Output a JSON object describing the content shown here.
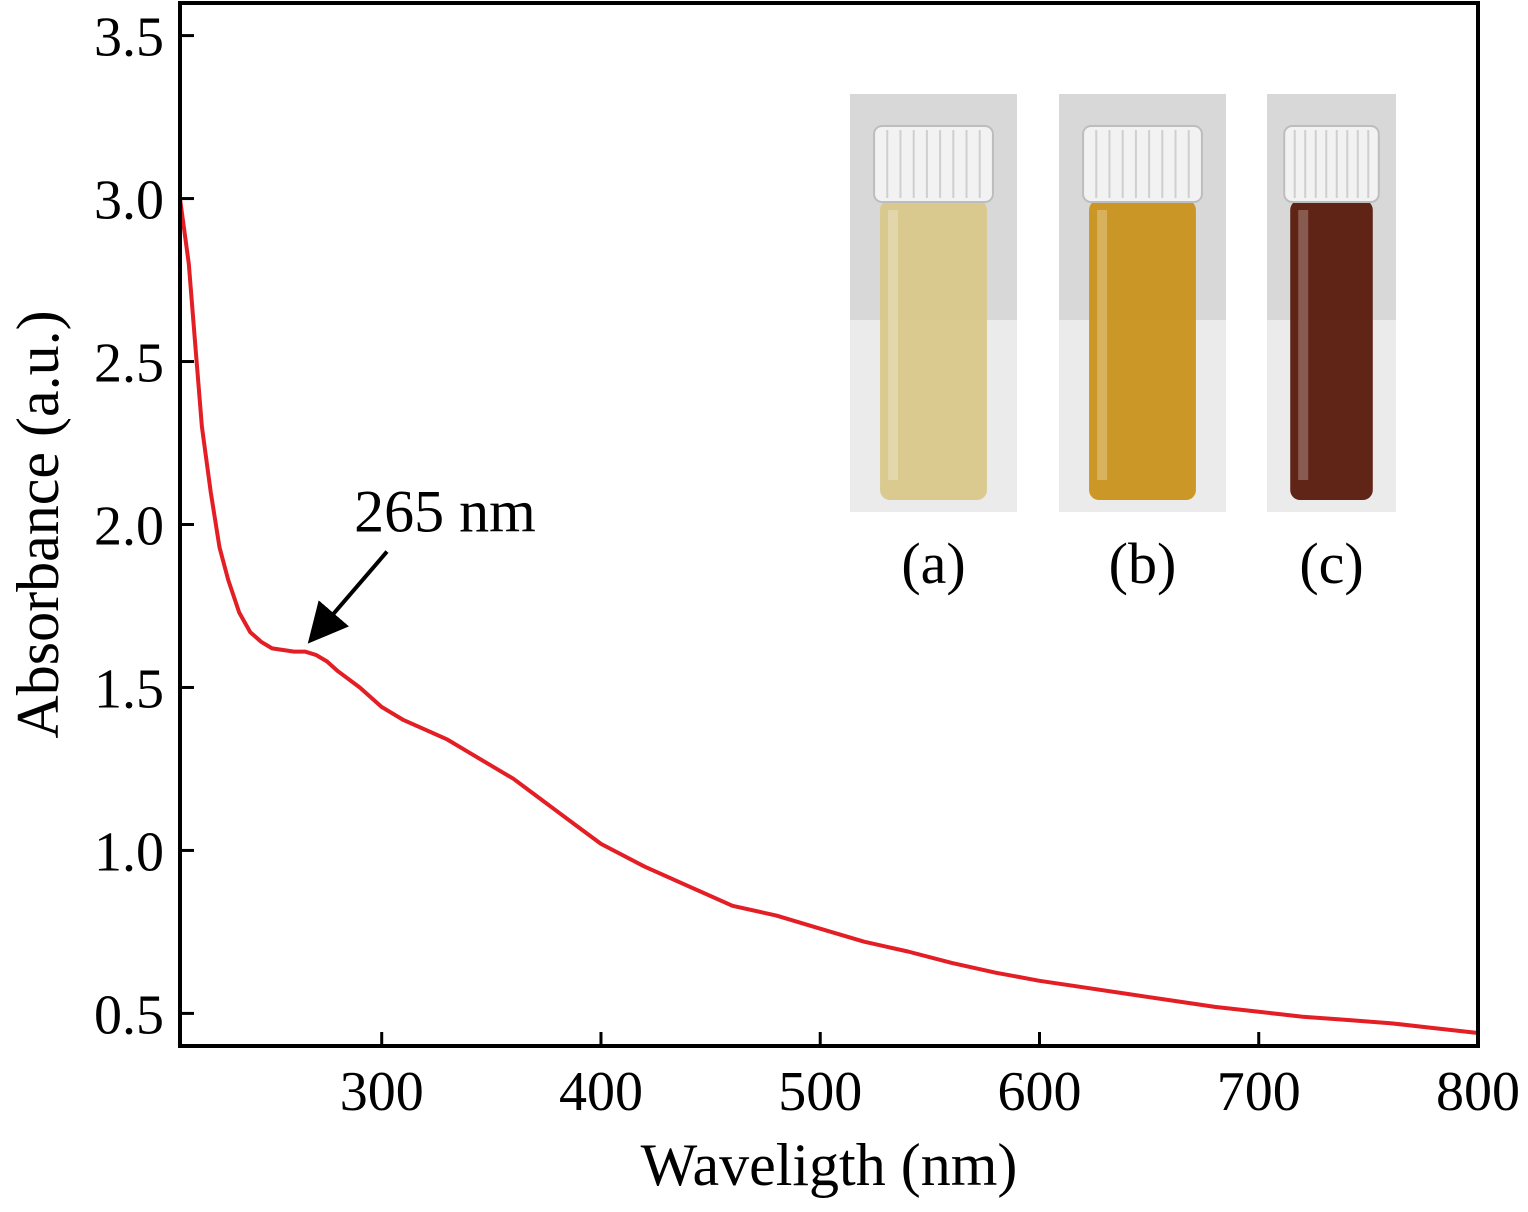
{
  "chart_data": {
    "type": "line",
    "title": "",
    "xlabel": "Waveligth (nm)",
    "ylabel": "Absorbance (a.u.)",
    "xlim": [
      208,
      800
    ],
    "ylim": [
      0.4,
      3.6
    ],
    "xticks": [
      300,
      400,
      500,
      600,
      700,
      800
    ],
    "yticks": [
      0.5,
      1.0,
      1.5,
      2.0,
      2.5,
      3.0,
      3.5
    ],
    "xtick_labels": [
      "300",
      "400",
      "500",
      "600",
      "700",
      "800"
    ],
    "ytick_labels": [
      "0.5",
      "1.0",
      "1.5",
      "2.0",
      "2.5",
      "3.0",
      "3.5"
    ],
    "grid": false,
    "legend": "none",
    "series": [
      {
        "color": "#e31e24",
        "x": [
          208,
          212,
          215,
          218,
          222,
          226,
          230,
          235,
          240,
          245,
          250,
          255,
          260,
          265,
          270,
          275,
          280,
          290,
          300,
          310,
          320,
          330,
          340,
          350,
          360,
          370,
          380,
          390,
          400,
          420,
          440,
          460,
          480,
          500,
          520,
          540,
          560,
          580,
          600,
          620,
          640,
          660,
          680,
          700,
          720,
          740,
          760,
          780,
          800
        ],
        "y": [
          3.0,
          2.8,
          2.55,
          2.3,
          2.1,
          1.93,
          1.83,
          1.73,
          1.67,
          1.64,
          1.62,
          1.615,
          1.61,
          1.61,
          1.6,
          1.58,
          1.55,
          1.5,
          1.44,
          1.4,
          1.37,
          1.34,
          1.3,
          1.26,
          1.22,
          1.17,
          1.12,
          1.07,
          1.02,
          0.95,
          0.89,
          0.83,
          0.8,
          0.76,
          0.72,
          0.69,
          0.655,
          0.625,
          0.6,
          0.58,
          0.56,
          0.54,
          0.52,
          0.505,
          0.49,
          0.48,
          0.47,
          0.455,
          0.44
        ]
      }
    ],
    "annotations": [
      {
        "text": "265 nm",
        "x": 265,
        "y": 1.61,
        "arrow": true
      }
    ]
  },
  "inset": {
    "labels": [
      "(a)",
      "(b)",
      "(c)"
    ],
    "icons": [
      "vial-pale-yellow-icon",
      "vial-amber-icon",
      "vial-dark-brown-icon"
    ],
    "liquid_colors": [
      "#d9c88a",
      "#c9931e",
      "#5a1a0c"
    ],
    "background_color": "#d8d8d8",
    "cap_color": "#f2f2f2"
  }
}
